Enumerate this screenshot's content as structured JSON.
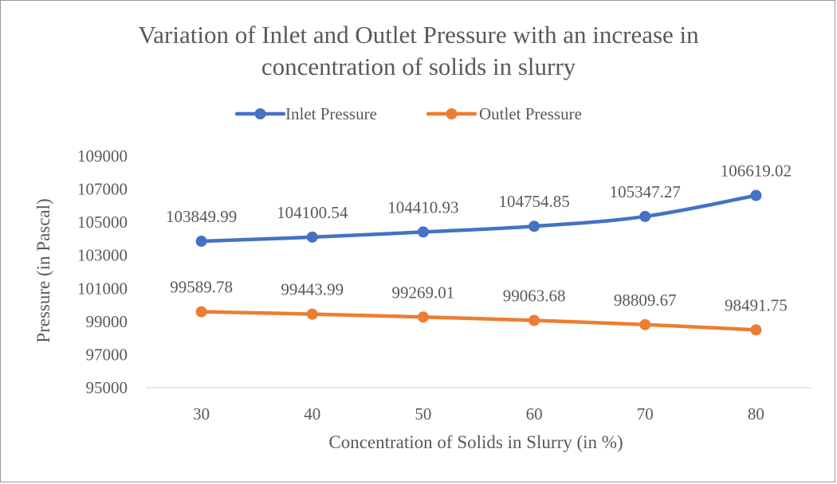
{
  "chart_data": {
    "type": "line",
    "title_line1": "Variation of Inlet and Outlet Pressure with an increase in",
    "title_line2": "concentration of solids in slurry",
    "xlabel": "Concentration of Solids in Slurry (in %)",
    "ylabel": "Pressure (in Pascal)",
    "categories": [
      "30",
      "40",
      "50",
      "60",
      "70",
      "80"
    ],
    "ylim": [
      95000,
      109000
    ],
    "yticks": [
      95000,
      97000,
      99000,
      101000,
      103000,
      105000,
      107000,
      109000
    ],
    "grid": false,
    "legend_position": "top",
    "series": [
      {
        "name": "Inlet Pressure",
        "color": "#4472C4",
        "values": [
          103849.99,
          104100.54,
          104410.93,
          104754.85,
          105347.27,
          106619.02
        ],
        "labels": [
          "103849.99",
          "104100.54",
          "104410.93",
          "104754.85",
          "105347.27",
          "106619.02"
        ]
      },
      {
        "name": "Outlet Pressure",
        "color": "#ED7D31",
        "values": [
          99589.78,
          99443.99,
          99269.01,
          99063.68,
          98809.67,
          98491.75
        ],
        "labels": [
          "99589.78",
          "99443.99",
          "99269.01",
          "99063.68",
          "98809.67",
          "98491.75"
        ]
      }
    ]
  }
}
